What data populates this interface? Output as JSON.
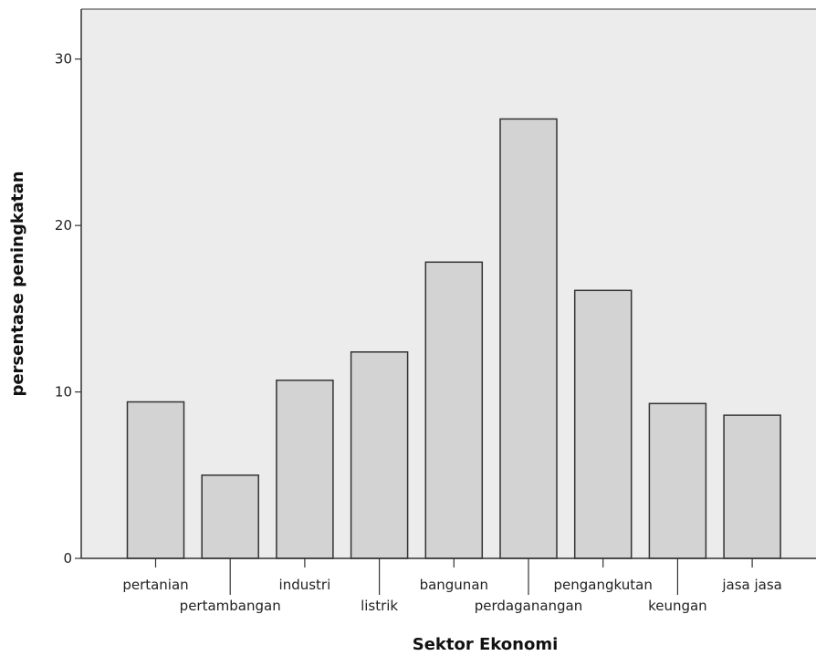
{
  "chart_data": {
    "type": "bar",
    "title": "",
    "xlabel": "Sektor Ekonomi",
    "ylabel": "persentase peningkatan",
    "categories": [
      "pertanian",
      "pertambangan",
      "industri",
      "listrik",
      "bangunan",
      "perdaganangan",
      "pengangkutan",
      "keungan",
      "jasa jasa"
    ],
    "values": [
      9.4,
      5.0,
      10.7,
      12.4,
      17.8,
      26.4,
      16.1,
      9.3,
      8.6
    ],
    "ylim": [
      0,
      33
    ],
    "yticks": [
      0,
      10,
      20,
      30
    ],
    "grid": false,
    "legend": "none",
    "colors": {
      "plot_background": "#ececec",
      "bar_fill": "#d3d3d3",
      "bar_stroke": "#333333",
      "axis": "#333333"
    }
  }
}
